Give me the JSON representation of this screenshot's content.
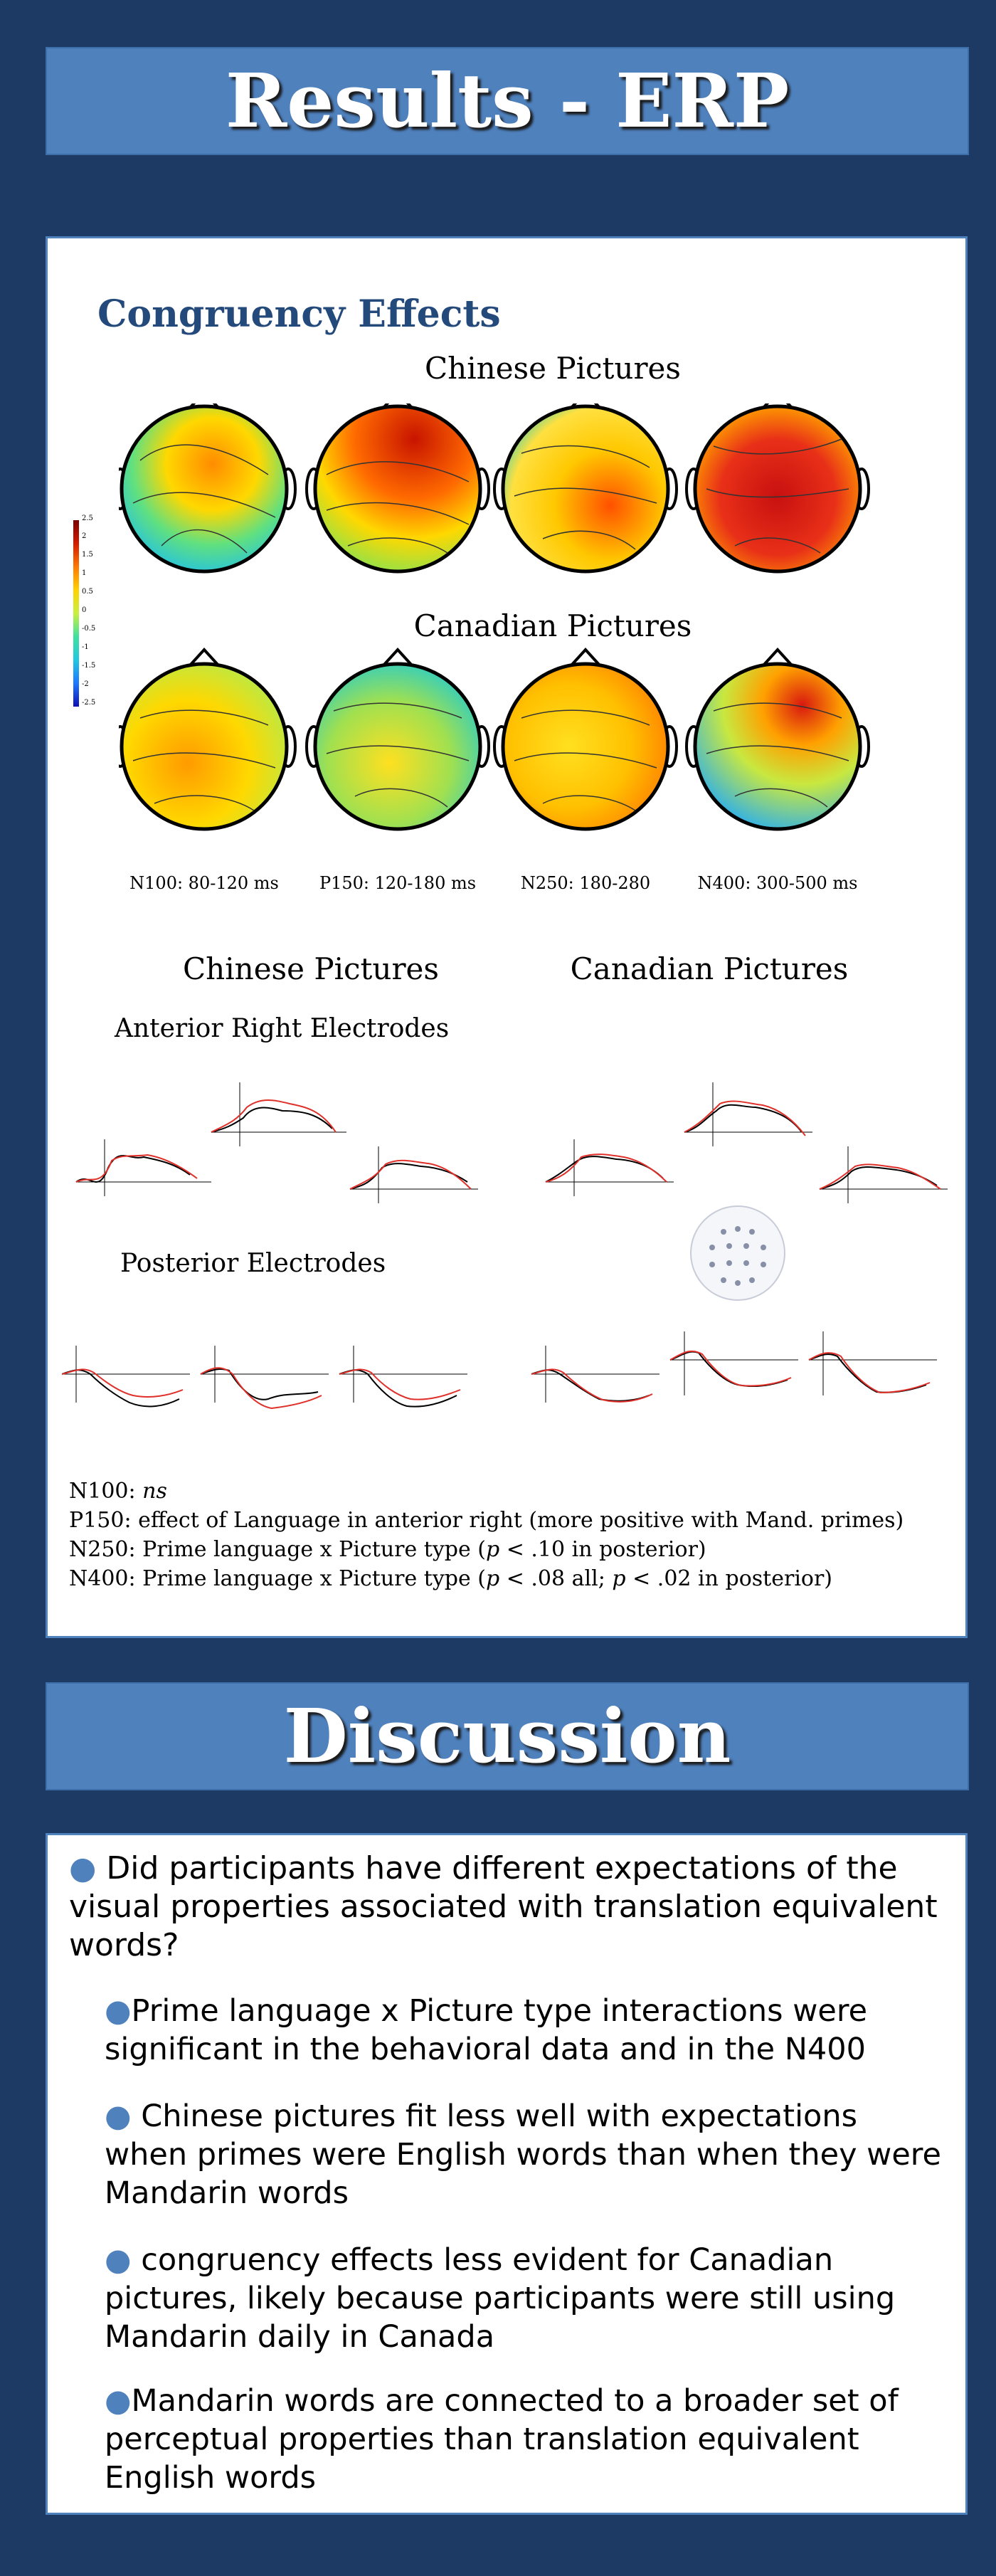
{
  "results_erp": {
    "title": "Results - ERP",
    "congruency_heading": "Congruency Effects",
    "chinese_pictures_label": "Chinese Pictures",
    "canadian_pictures_label": "Canadian Pictures",
    "colorbar_ticks": [
      "2.5",
      "2",
      "1.5",
      "1",
      "0.5",
      "0",
      "-0.5",
      "-1",
      "-1.5",
      "-2",
      "-2.5"
    ],
    "time_windows": [
      "N100: 80-120 ms",
      "P150: 120-180 ms",
      "N250: 180-280",
      "N400: 300-500 ms"
    ],
    "waveforms": {
      "col_chinese": "Chinese Pictures",
      "col_canadian": "Canadian Pictures",
      "anterior_label": "Anterior Right Electrodes",
      "posterior_label": "Posterior Electrodes"
    },
    "summary": {
      "n100_prefix": "N100: ",
      "n100_ns": "ns",
      "p150": "P150: effect of Language in anterior right (more positive with Mand. primes)",
      "n250_a": "N250: Prime language x Picture type (",
      "n250_p": "p",
      "n250_b": " < .10 in posterior)",
      "n400_a": "N400: Prime language x Picture type (",
      "n400_p1": "p",
      "n400_b": " < .08 all; ",
      "n400_p2": "p",
      "n400_c": " < .02 in posterior)"
    }
  },
  "discussion": {
    "title": "Discussion",
    "bullet": "●",
    "question": " Did participants have different expectations of the visual properties associated with translation equivalent words?",
    "points": [
      "Prime language x Picture type interactions were significant in the behavioral data and in the N400",
      " Chinese pictures fit less well with expectations when primes were English words than when they were Mandarin words",
      " congruency effects less evident for Canadian pictures, likely because participants were still using Mandarin daily in Canada",
      "Mandarin words are connected to a broader set of perceptual properties than translation equivalent English words"
    ]
  },
  "colors": {
    "background": "#1c3a63",
    "banner": "#4f81bd",
    "heading": "#244a7c",
    "congruent_trace": "#000000",
    "incongruent_trace": "#e0302a"
  }
}
